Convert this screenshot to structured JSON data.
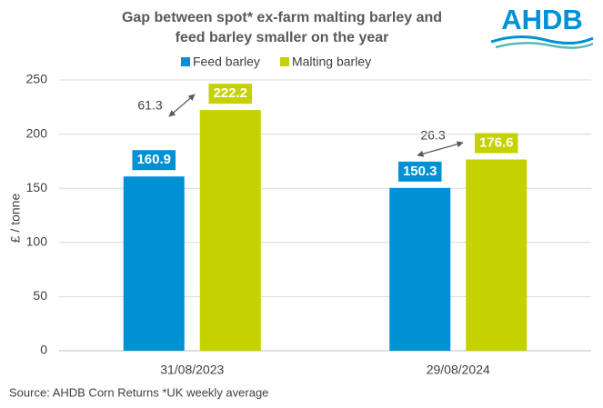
{
  "chart_data": {
    "type": "bar",
    "title": [
      "Gap between spot* ex-farm malting barley and",
      "feed barley smaller on the year"
    ],
    "logo": "AHDB",
    "y_label": "£ / tonne",
    "source": "Source: AHDB Corn Returns    *UK weekly average",
    "categories": [
      "31/08/2023",
      "29/08/2024"
    ],
    "series": [
      {
        "name": "Feed barley",
        "color": "#0090d4",
        "values": [
          160.9,
          150.3
        ]
      },
      {
        "name": "Malting barley",
        "color": "#c5d200",
        "values": [
          222.2,
          176.6
        ]
      }
    ],
    "annotations": [
      "61.3",
      "26.3"
    ],
    "ylim": [
      0,
      250
    ],
    "yticks": [
      0,
      50,
      100,
      150,
      200,
      250
    ],
    "grid": true
  }
}
